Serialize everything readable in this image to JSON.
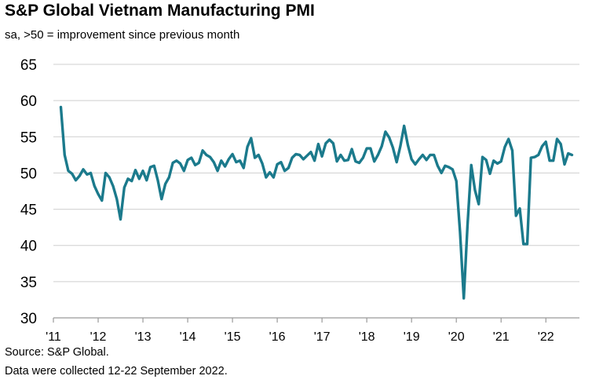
{
  "chart_data": {
    "type": "line",
    "title": "S&P Global Vietnam Manufacturing PMI",
    "subtitle": "sa, >50 = improvement since previous month",
    "xlabel": "",
    "ylabel": "",
    "ylim": [
      30,
      65
    ],
    "yticks": [
      30,
      35,
      40,
      45,
      50,
      55,
      60,
      65
    ],
    "xlim": [
      2011.0,
      2022.75
    ],
    "xticks": [
      {
        "x": 2011,
        "label": "'11"
      },
      {
        "x": 2012,
        "label": "'12"
      },
      {
        "x": 2013,
        "label": "'13"
      },
      {
        "x": 2014,
        "label": "'14"
      },
      {
        "x": 2015,
        "label": "'15"
      },
      {
        "x": 2016,
        "label": "'16"
      },
      {
        "x": 2017,
        "label": "'17"
      },
      {
        "x": 2018,
        "label": "'18"
      },
      {
        "x": 2019,
        "label": "'19"
      },
      {
        "x": 2020,
        "label": "'20"
      },
      {
        "x": 2021,
        "label": "'21"
      },
      {
        "x": 2022,
        "label": "'22"
      }
    ],
    "grid": "horizontal",
    "line_color": "#1b7a8c",
    "series": [
      {
        "start": "2011-03",
        "frequency": "monthly",
        "values": [
          59.1,
          52.5,
          50.3,
          49.9,
          49.0,
          49.6,
          50.5,
          49.8,
          50.0,
          48.2,
          47.1,
          46.2,
          50.0,
          49.4,
          48.2,
          46.4,
          43.6,
          48.0,
          49.2,
          48.9,
          50.4,
          49.2,
          50.3,
          49.0,
          50.8,
          51.0,
          49.0,
          46.4,
          48.5,
          49.4,
          51.4,
          51.7,
          51.3,
          50.3,
          51.8,
          52.1,
          51.1,
          51.4,
          53.1,
          52.5,
          52.2,
          51.5,
          50.3,
          51.7,
          50.9,
          51.9,
          52.6,
          51.5,
          51.7,
          50.7,
          53.6,
          54.8,
          52.1,
          52.5,
          51.3,
          49.4,
          50.1,
          49.4,
          51.2,
          51.5,
          50.3,
          50.7,
          52.1,
          52.6,
          52.5,
          51.9,
          52.4,
          52.9,
          51.7,
          54.0,
          52.3,
          54.1,
          54.6,
          54.1,
          51.6,
          52.5,
          51.7,
          51.8,
          53.3,
          51.6,
          51.4,
          52.1,
          53.4,
          53.4,
          51.6,
          52.5,
          53.7,
          55.7,
          54.9,
          53.5,
          51.5,
          53.7,
          56.5,
          53.9,
          51.9,
          51.2,
          51.9,
          52.5,
          51.8,
          52.5,
          52.5,
          51.0,
          50.0,
          51.0,
          50.8,
          50.5,
          48.9,
          41.9,
          32.7,
          42.7,
          51.1,
          47.6,
          45.7,
          52.2,
          51.8,
          49.9,
          51.7,
          51.3,
          51.6,
          53.6,
          54.7,
          53.1,
          44.1,
          45.1,
          40.2,
          40.2,
          52.1,
          52.2,
          52.5,
          53.7,
          54.3,
          51.7,
          51.7,
          54.7,
          54.0,
          51.2,
          52.7,
          52.5
        ]
      }
    ],
    "source": "Source: S&P Global.",
    "note": "Data were collected 12-22 September 2022."
  }
}
